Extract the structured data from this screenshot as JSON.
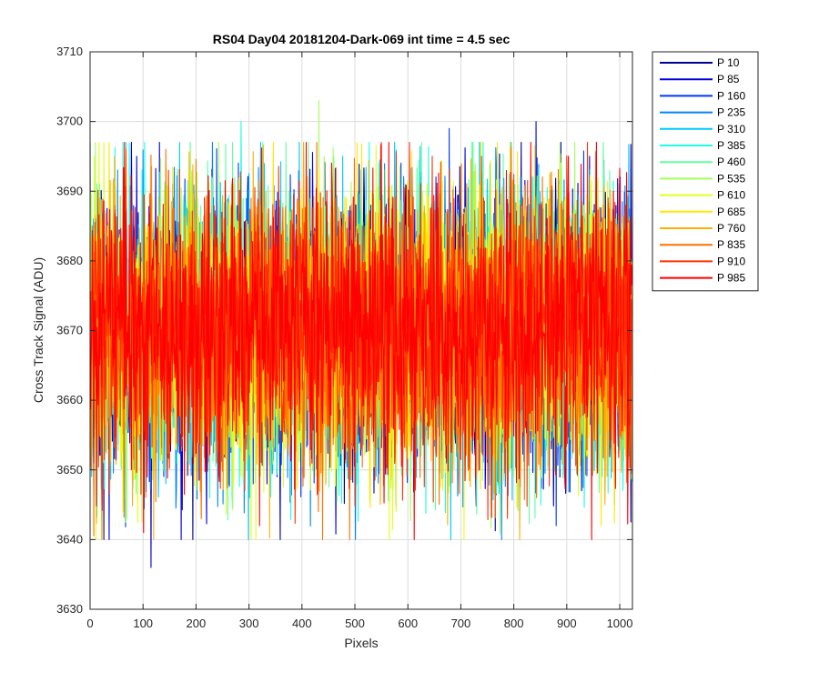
{
  "chart_data": {
    "type": "line",
    "title": "RS04 Day04 20181204-Dark-069 int time = 4.5 sec",
    "xlabel": "Pixels",
    "ylabel": "Cross Track Signal (ADU)",
    "xlim": [
      0,
      1024
    ],
    "ylim": [
      3630,
      3710
    ],
    "xticks": [
      0,
      100,
      200,
      300,
      400,
      500,
      600,
      700,
      800,
      900,
      1000
    ],
    "yticks": [
      3630,
      3640,
      3650,
      3660,
      3670,
      3680,
      3690,
      3700,
      3710
    ],
    "grid": true,
    "legend_position": "outside-right",
    "noise": {
      "mean": 3670,
      "typical_min": 3650,
      "typical_max": 3690
    },
    "series": [
      {
        "name": "P 10",
        "color": "#00008f"
      },
      {
        "name": "P 85",
        "color": "#0000dd"
      },
      {
        "name": "P 160",
        "color": "#0036ff"
      },
      {
        "name": "P 235",
        "color": "#0085ff"
      },
      {
        "name": "P 310",
        "color": "#00c8ff"
      },
      {
        "name": "P 385",
        "color": "#1cffe3"
      },
      {
        "name": "P 460",
        "color": "#60ffa0"
      },
      {
        "name": "P 535",
        "color": "#a4ff5c"
      },
      {
        "name": "P 610",
        "color": "#e3ff1c"
      },
      {
        "name": "P 685",
        "color": "#ffe600"
      },
      {
        "name": "P 760",
        "color": "#ffb000"
      },
      {
        "name": "P 835",
        "color": "#ff7000"
      },
      {
        "name": "P 910",
        "color": "#ff3000"
      },
      {
        "name": "P 985",
        "color": "#ff0000"
      }
    ],
    "notable_points": [
      {
        "x": 115,
        "y": 3636,
        "series": "P 85"
      },
      {
        "x": 320,
        "y": 3642,
        "series": "P 985"
      },
      {
        "x": 880,
        "y": 3642,
        "series": "P 160"
      },
      {
        "x": 965,
        "y": 3642,
        "series": "P 685"
      },
      {
        "x": 210,
        "y": 3643,
        "series": "P 835"
      },
      {
        "x": 62,
        "y": 3644,
        "series": "P 610"
      },
      {
        "x": 432,
        "y": 3703,
        "series": "P 535"
      },
      {
        "x": 285,
        "y": 3700,
        "series": "P 385"
      },
      {
        "x": 842,
        "y": 3700,
        "series": "P 85"
      },
      {
        "x": 678,
        "y": 3699,
        "series": "P 160"
      },
      {
        "x": 550,
        "y": 3697,
        "series": "P 910"
      },
      {
        "x": 143,
        "y": 3696,
        "series": "P 835"
      },
      {
        "x": 88,
        "y": 3695,
        "series": "P 85"
      },
      {
        "x": 903,
        "y": 3695,
        "series": "P 985"
      }
    ]
  }
}
